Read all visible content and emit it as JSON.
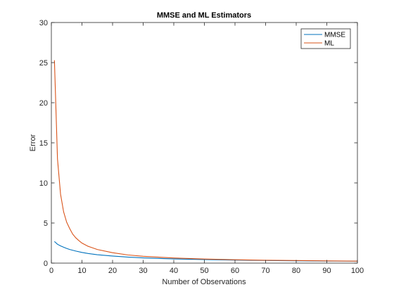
{
  "chart_data": {
    "type": "line",
    "title": "MMSE and ML Estimators",
    "xlabel": "Number of Observations",
    "ylabel": "Error",
    "xlim": [
      0,
      100
    ],
    "ylim": [
      0,
      30
    ],
    "xticks": [
      0,
      10,
      20,
      30,
      40,
      50,
      60,
      70,
      80,
      90,
      100
    ],
    "yticks": [
      0,
      5,
      10,
      15,
      20,
      25,
      30
    ],
    "grid": false,
    "legend_position": "top-right",
    "series": [
      {
        "name": "MMSE",
        "color": "#0072BD",
        "x": [
          1,
          2,
          3,
          4,
          5,
          6,
          8,
          10,
          12,
          15,
          20,
          25,
          30,
          40,
          50,
          60,
          70,
          80,
          90,
          100
        ],
        "values": [
          2.7,
          2.35,
          2.15,
          1.98,
          1.83,
          1.7,
          1.5,
          1.33,
          1.2,
          1.05,
          0.88,
          0.75,
          0.65,
          0.52,
          0.44,
          0.38,
          0.33,
          0.29,
          0.26,
          0.24
        ]
      },
      {
        "name": "ML",
        "color": "#D95319",
        "x": [
          1,
          2,
          3,
          4,
          5,
          6,
          7,
          8,
          9,
          10,
          12,
          15,
          20,
          25,
          30,
          40,
          50,
          60,
          70,
          80,
          90,
          100
        ],
        "values": [
          25.3,
          13.0,
          8.6,
          6.4,
          5.1,
          4.3,
          3.6,
          3.15,
          2.8,
          2.5,
          2.1,
          1.7,
          1.3,
          1.02,
          0.85,
          0.64,
          0.51,
          0.42,
          0.36,
          0.32,
          0.28,
          0.25
        ]
      }
    ]
  }
}
